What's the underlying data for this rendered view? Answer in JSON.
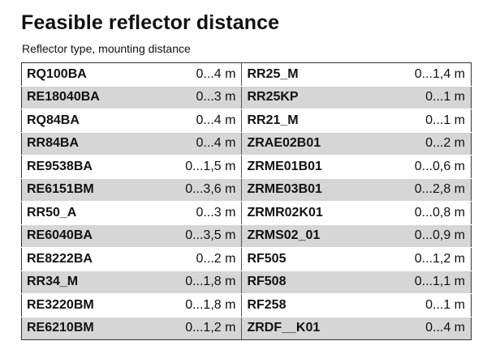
{
  "title": "Feasible reflector distance",
  "subtitle": "Reflector type, mounting distance",
  "rows": [
    {
      "left_type": "RQ100BA",
      "left_dist": "0...4 m",
      "right_type": "RR25_M",
      "right_dist": "0...1,4 m"
    },
    {
      "left_type": "RE18040BA",
      "left_dist": "0...3 m",
      "right_type": "RR25KP",
      "right_dist": "0...1 m"
    },
    {
      "left_type": "RQ84BA",
      "left_dist": "0...4 m",
      "right_type": "RR21_M",
      "right_dist": "0...1 m"
    },
    {
      "left_type": "RR84BA",
      "left_dist": "0...4 m",
      "right_type": "ZRAE02B01",
      "right_dist": "0...2 m"
    },
    {
      "left_type": "RE9538BA",
      "left_dist": "0...1,5 m",
      "right_type": "ZRME01B01",
      "right_dist": "0...0,6 m"
    },
    {
      "left_type": "RE6151BM",
      "left_dist": "0...3,6 m",
      "right_type": "ZRME03B01",
      "right_dist": "0...2,8 m"
    },
    {
      "left_type": "RR50_A",
      "left_dist": "0...3 m",
      "right_type": "ZRMR02K01",
      "right_dist": "0...0,8 m"
    },
    {
      "left_type": "RE6040BA",
      "left_dist": "0...3,5 m",
      "right_type": "ZRMS02_01",
      "right_dist": "0...0,9 m"
    },
    {
      "left_type": "RE8222BA",
      "left_dist": "0...2 m",
      "right_type": "RF505",
      "right_dist": "0...1,2 m"
    },
    {
      "left_type": "RR34_M",
      "left_dist": "0...1,8 m",
      "right_type": "RF508",
      "right_dist": "0...1,1 m"
    },
    {
      "left_type": "RE3220BM",
      "left_dist": "0...1,8 m",
      "right_type": "RF258",
      "right_dist": "0...1 m"
    },
    {
      "left_type": "RE6210BM",
      "left_dist": "0...1,2 m",
      "right_type": "ZRDF__K01",
      "right_dist": "0...4 m"
    }
  ],
  "colors": {
    "row_shade": "#d6d6d6",
    "text": "#111111",
    "border": "#333333"
  }
}
